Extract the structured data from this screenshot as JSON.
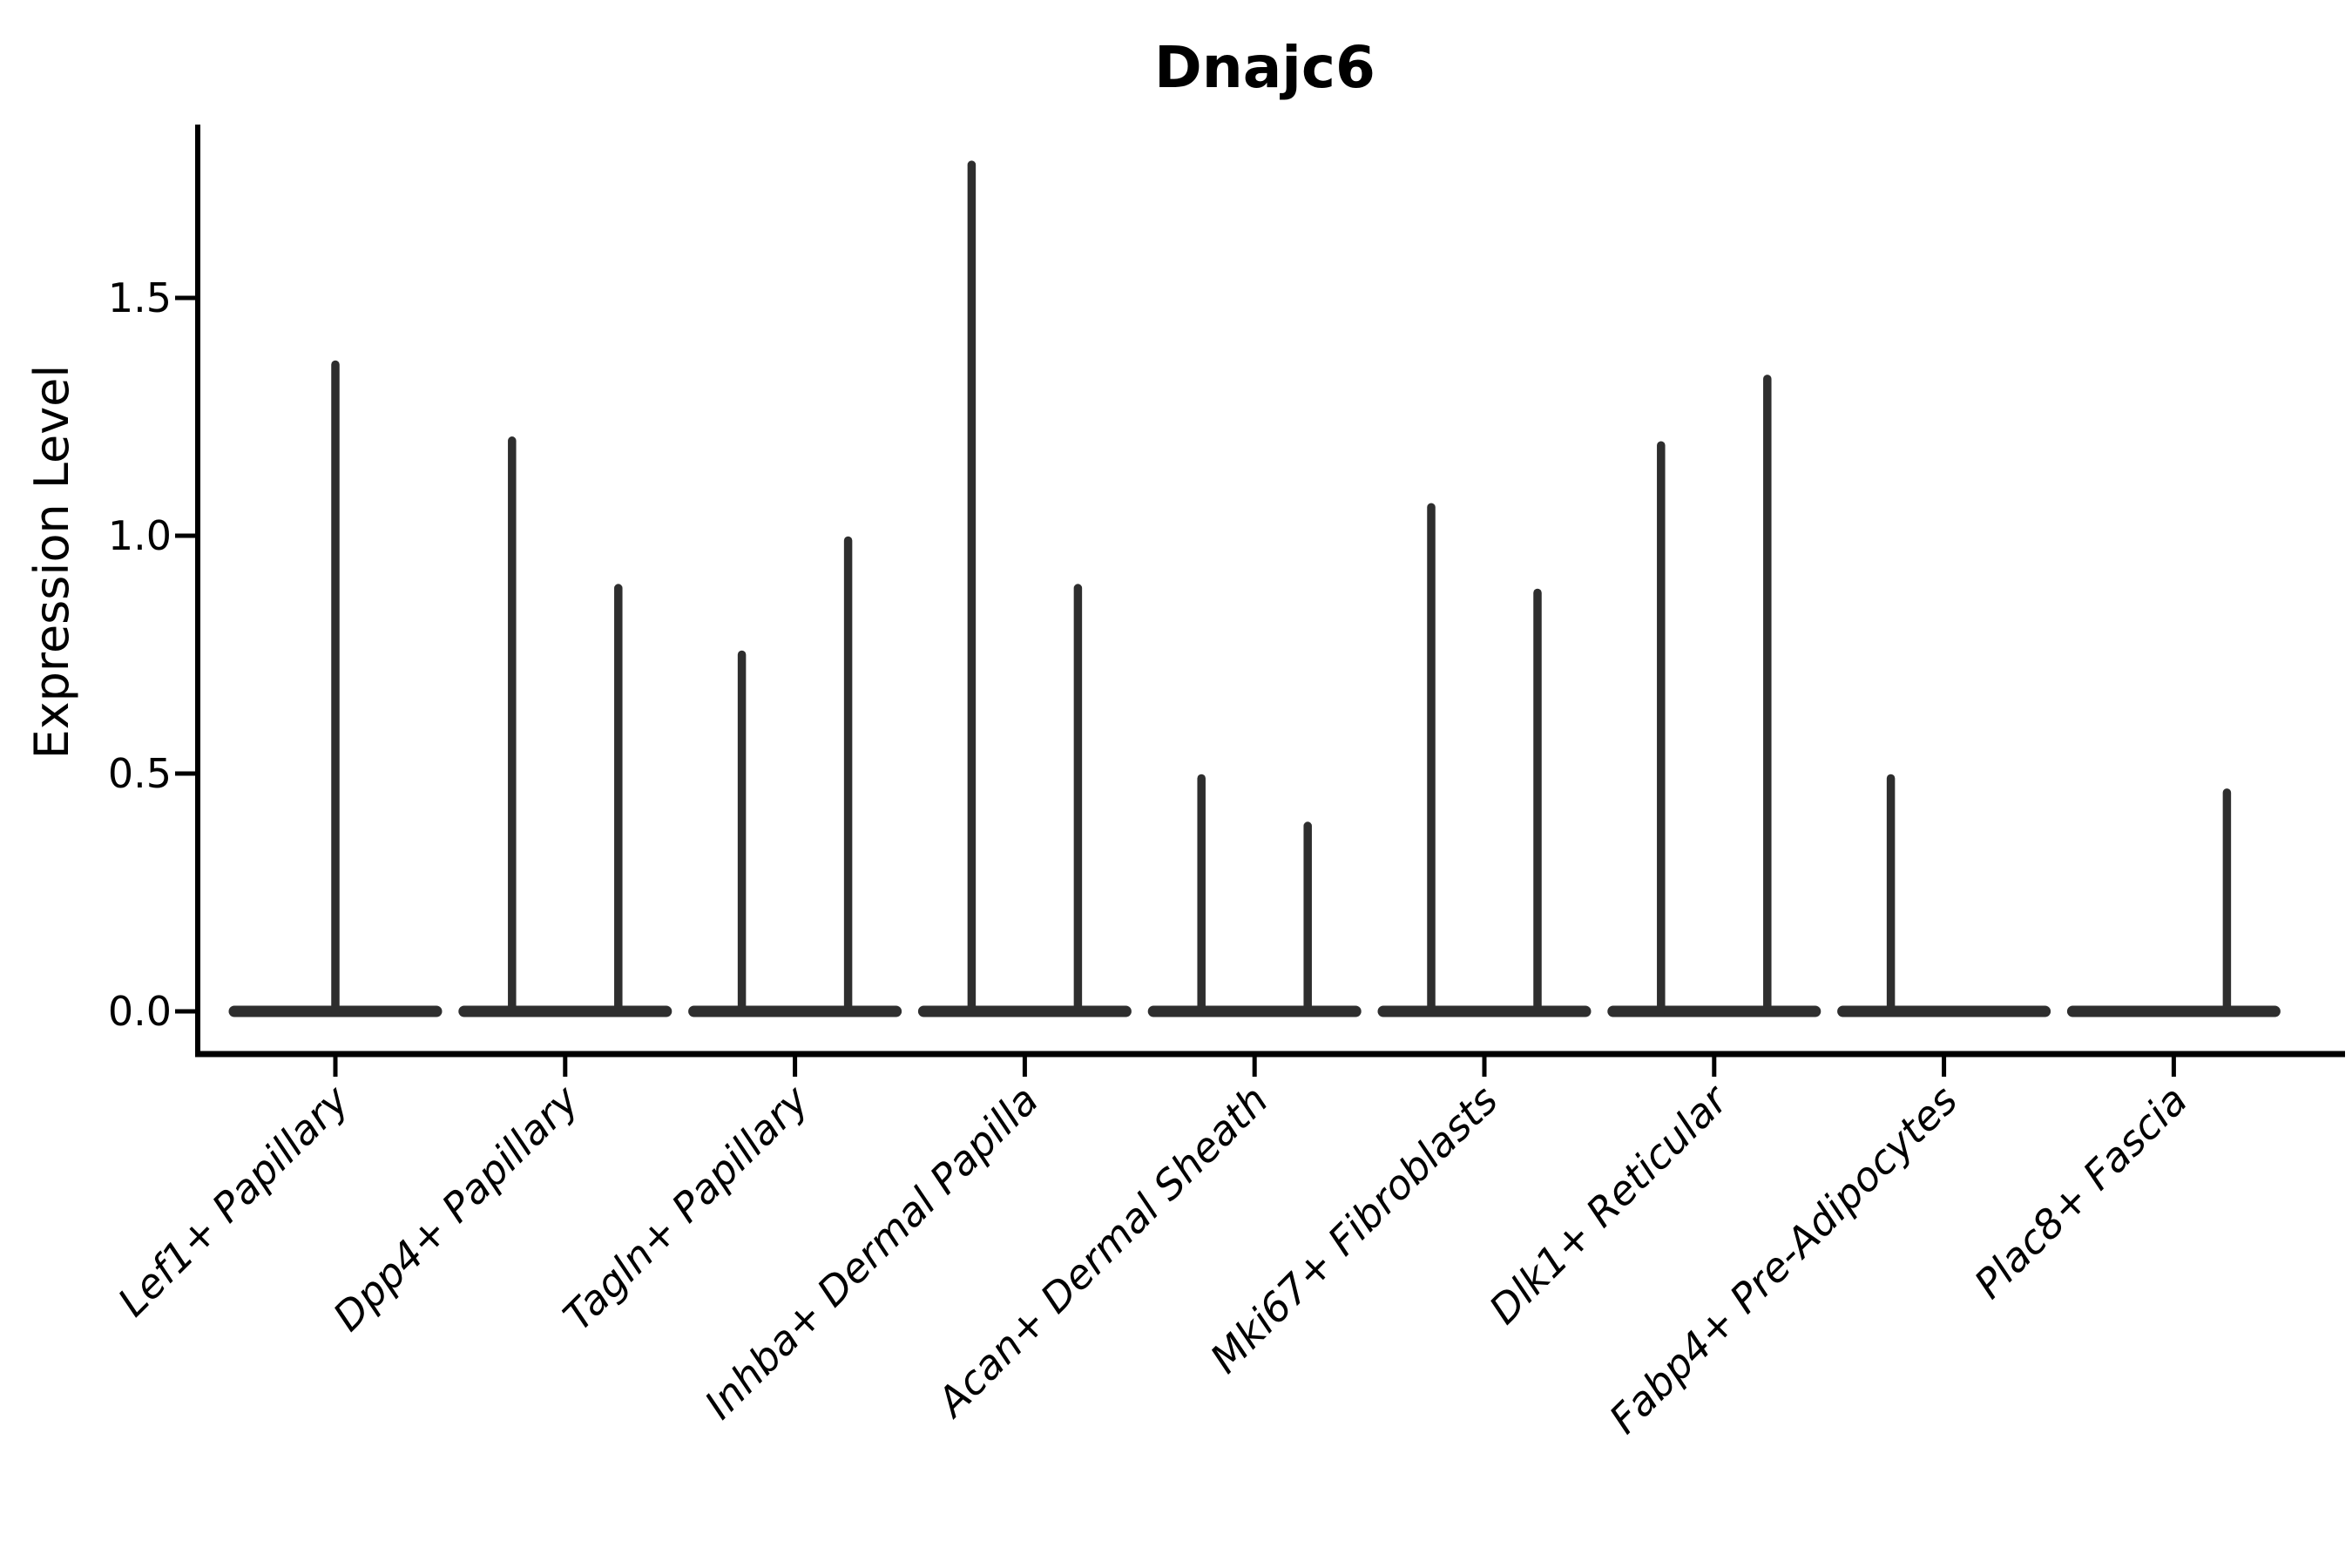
{
  "title": "Dnajc6",
  "y_axis": {
    "label": "Expression Level",
    "tick_labels": [
      "0.0",
      "0.5",
      "1.0",
      "1.5"
    ]
  },
  "chart_data": {
    "type": "violin",
    "title": "Dnajc6",
    "ylabel": "Expression Level",
    "xlabel": "",
    "ylim": [
      -0.09,
      1.86
    ],
    "y_ticks": [
      0.0,
      0.5,
      1.0,
      1.5
    ],
    "grid": false,
    "legend": "none",
    "violin_color": "#2e2e2e",
    "axis_color": "#000000",
    "background_color": "#ffffff",
    "categories": [
      "Lef1+ Papillary",
      "Dpp4+ Papillary",
      "Tagln+ Papillary",
      "Inhba+ Dermal Papilla",
      "Acan+ Dermal Sheath",
      "Mki67+ Fibroblasts",
      "Dlk1+ Reticular",
      "Fabp4+ Pre-Adipocytes",
      "Plac8+ Fascia"
    ],
    "violins": [
      {
        "category": "Lef1+ Papillary",
        "baseline_at_zero": true,
        "spikes": [
          {
            "position": "center",
            "max": 1.36
          }
        ]
      },
      {
        "category": "Dpp4+ Papillary",
        "baseline_at_zero": true,
        "spikes": [
          {
            "position": "left",
            "max": 1.2
          },
          {
            "position": "right",
            "max": 0.89
          }
        ]
      },
      {
        "category": "Tagln+ Papillary",
        "baseline_at_zero": true,
        "spikes": [
          {
            "position": "left",
            "max": 0.75
          },
          {
            "position": "right",
            "max": 0.99
          }
        ]
      },
      {
        "category": "Inhba+ Dermal Papilla",
        "baseline_at_zero": true,
        "spikes": [
          {
            "position": "left",
            "max": 1.78
          },
          {
            "position": "right",
            "max": 0.89
          }
        ]
      },
      {
        "category": "Acan+ Dermal Sheath",
        "baseline_at_zero": true,
        "spikes": [
          {
            "position": "left",
            "max": 0.49
          },
          {
            "position": "right",
            "max": 0.39
          }
        ]
      },
      {
        "category": "Mki67+ Fibroblasts",
        "baseline_at_zero": true,
        "spikes": [
          {
            "position": "left",
            "max": 1.06
          },
          {
            "position": "right",
            "max": 0.88
          }
        ]
      },
      {
        "category": "Dlk1+ Reticular",
        "baseline_at_zero": true,
        "spikes": [
          {
            "position": "left",
            "max": 1.19
          },
          {
            "position": "right",
            "max": 1.33
          }
        ]
      },
      {
        "category": "Fabp4+ Pre-Adipocytes",
        "baseline_at_zero": true,
        "spikes": [
          {
            "position": "left",
            "max": 0.49
          }
        ]
      },
      {
        "category": "Plac8+ Fascia",
        "baseline_at_zero": true,
        "spikes": [
          {
            "position": "right",
            "max": 0.46
          }
        ]
      }
    ]
  }
}
